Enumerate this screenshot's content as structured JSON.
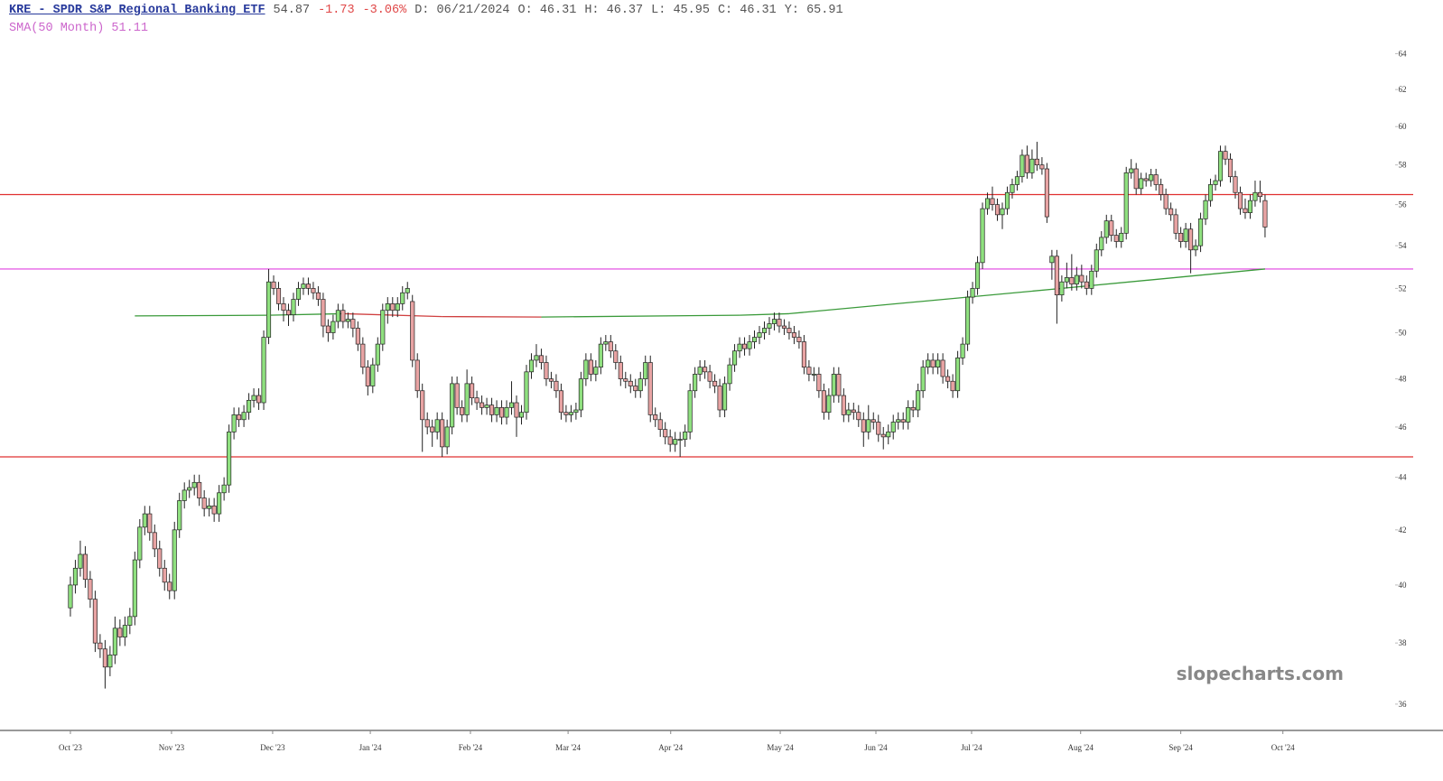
{
  "chart_data": {
    "type": "candlestick",
    "title": "KRE - SPDR S&P Regional Banking ETF",
    "quote": [
      "54.87",
      "-1.73",
      "-3.06%",
      "D: 06/21/2024",
      "O: 46.31",
      "H: 46.37",
      "L: 45.95",
      "C: 46.31",
      "Y: 65.91"
    ],
    "quote_colors": [
      "#555555",
      "#e04848",
      "#e04848",
      "#555555",
      "#555555",
      "#555555",
      "#555555",
      "#555555",
      "#555555"
    ],
    "sma_label": "SMA(50 Month) 51.11",
    "watermark": "slopecharts.com",
    "log_scale": true,
    "up_color": "#8fe07f",
    "down_color": "#e8a3a3",
    "ylim": [
      35.2,
      65
    ],
    "yticks": [
      36,
      38,
      40,
      42,
      44,
      46,
      48,
      50,
      52,
      54,
      56,
      58,
      60,
      62,
      64
    ],
    "xlim": [
      -14.2,
      263.6
    ],
    "xticks": [
      {
        "value": 0,
        "label": "Oct '23"
      },
      {
        "value": 20.4,
        "label": "Nov '23"
      },
      {
        "value": 40.8,
        "label": "Dec '23"
      },
      {
        "value": 60.5,
        "label": "Jan '24"
      },
      {
        "value": 80.7,
        "label": "Feb '24"
      },
      {
        "value": 100.4,
        "label": "Mar '24"
      },
      {
        "value": 121.1,
        "label": "Apr '24"
      },
      {
        "value": 143.2,
        "label": "May '24"
      },
      {
        "value": 162.5,
        "label": "Jun '24"
      },
      {
        "value": 181.8,
        "label": "Jul '24"
      },
      {
        "value": 203.8,
        "label": "Aug '24"
      },
      {
        "value": 224,
        "label": "Sep '24"
      },
      {
        "value": 244.6,
        "label": "Oct '24"
      }
    ],
    "hlines": [
      {
        "value": 56.5,
        "color": "#e03030"
      },
      {
        "value": 52.9,
        "color": "#e040e0"
      },
      {
        "value": 44.8,
        "color": "#e03030"
      }
    ],
    "sma": {
      "x": [
        13,
        40,
        55,
        75,
        95,
        135,
        145,
        200,
        241
      ],
      "values": [
        50.75,
        50.78,
        50.85,
        50.72,
        50.7,
        50.78,
        50.85,
        52.0,
        52.9
      ],
      "up_color": "#3a9a3a",
      "down_color": "#d04040"
    },
    "candles": [
      [
        39.2,
        40.3,
        38.9,
        40
      ],
      [
        40,
        40.9,
        39.7,
        40.6
      ],
      [
        40.6,
        41.6,
        40.3,
        41.1
      ],
      [
        41.1,
        41.4,
        39.9,
        40.2
      ],
      [
        40.2,
        40.5,
        39.2,
        39.5
      ],
      [
        39.5,
        39.8,
        37.7,
        38
      ],
      [
        38,
        38.3,
        37.5,
        37.8
      ],
      [
        37.8,
        38.1,
        36.5,
        37.2
      ],
      [
        37.2,
        37.9,
        36.9,
        37.6
      ],
      [
        37.6,
        38.9,
        37.3,
        38.5
      ],
      [
        38.5,
        38.8,
        37.9,
        38.2
      ],
      [
        38.2,
        38.9,
        37.9,
        38.6
      ],
      [
        38.6,
        39.2,
        38.3,
        38.9
      ],
      [
        38.9,
        41.2,
        38.6,
        40.9
      ],
      [
        40.9,
        42.4,
        40.6,
        42.1
      ],
      [
        42.1,
        42.9,
        41.8,
        42.6
      ],
      [
        42.6,
        42.9,
        41.6,
        41.9
      ],
      [
        41.9,
        42.2,
        41,
        41.3
      ],
      [
        41.3,
        41.6,
        40.3,
        40.6
      ],
      [
        40.6,
        40.9,
        39.8,
        40.1
      ],
      [
        40.1,
        40.4,
        39.5,
        39.8
      ],
      [
        39.8,
        42.3,
        39.5,
        42
      ],
      [
        42,
        43.4,
        41.7,
        43.1
      ],
      [
        43.1,
        43.8,
        42.8,
        43.5
      ],
      [
        43.5,
        43.9,
        43.2,
        43.6
      ],
      [
        43.6,
        44.1,
        43.3,
        43.8
      ],
      [
        43.8,
        44.1,
        42.9,
        43.2
      ],
      [
        43.2,
        43.5,
        42.5,
        42.8
      ],
      [
        42.8,
        43.2,
        42.5,
        42.9
      ],
      [
        42.9,
        43.2,
        42.3,
        42.6
      ],
      [
        42.6,
        43.7,
        42.3,
        43.4
      ],
      [
        43.4,
        44,
        43.1,
        43.7
      ],
      [
        43.7,
        46.1,
        43.4,
        45.8
      ],
      [
        45.8,
        46.8,
        45.5,
        46.5
      ],
      [
        46.5,
        46.8,
        46,
        46.3
      ],
      [
        46.3,
        46.9,
        46,
        46.6
      ],
      [
        46.6,
        47.4,
        46.3,
        47.1
      ],
      [
        47.1,
        47.6,
        46.8,
        47.3
      ],
      [
        47.3,
        47.6,
        46.7,
        47
      ],
      [
        47,
        50.1,
        46.7,
        49.8
      ],
      [
        49.8,
        52.9,
        49.5,
        52.3
      ],
      [
        52.3,
        52.6,
        51.7,
        52
      ],
      [
        52,
        52.3,
        51,
        51.3
      ],
      [
        51.3,
        51.6,
        50.5,
        51
      ],
      [
        51,
        51.3,
        50.3,
        50.8
      ],
      [
        50.8,
        51.8,
        50.5,
        51.5
      ],
      [
        51.5,
        52.3,
        51.2,
        52
      ],
      [
        52,
        52.5,
        51.7,
        52.2
      ],
      [
        52.2,
        52.5,
        51.7,
        52
      ],
      [
        52,
        52.3,
        51.5,
        51.8
      ],
      [
        51.8,
        52.1,
        51.2,
        51.5
      ],
      [
        51.5,
        51.8,
        49.8,
        50.3
      ],
      [
        50.3,
        50.6,
        49.6,
        50
      ],
      [
        50,
        50.8,
        49.7,
        50.5
      ],
      [
        50.5,
        51.3,
        50.2,
        51
      ],
      [
        51,
        51.3,
        50.2,
        50.5
      ],
      [
        50.5,
        50.9,
        50.2,
        50.6
      ],
      [
        50.6,
        50.9,
        49.8,
        50.2
      ],
      [
        50.2,
        50.5,
        49.2,
        49.5
      ],
      [
        49.5,
        49.8,
        48.2,
        48.5
      ],
      [
        48.5,
        48.8,
        47.3,
        47.7
      ],
      [
        47.7,
        48.9,
        47.4,
        48.6
      ],
      [
        48.6,
        49.8,
        48.3,
        49.5
      ],
      [
        49.5,
        51.3,
        49.2,
        51
      ],
      [
        51,
        51.6,
        50.4,
        51.3
      ],
      [
        51.3,
        51.6,
        50.7,
        51
      ],
      [
        51,
        51.6,
        50.7,
        51.3
      ],
      [
        51.3,
        52.1,
        51,
        51.8
      ],
      [
        51.8,
        52.3,
        51.5,
        52
      ],
      [
        51.4,
        51.7,
        48.5,
        48.8
      ],
      [
        48.8,
        49.1,
        47.2,
        47.5
      ],
      [
        47.5,
        47.8,
        45,
        46.3
      ],
      [
        46.3,
        46.6,
        45.7,
        46
      ],
      [
        46,
        46.3,
        45.2,
        45.8
      ],
      [
        45.8,
        46.6,
        45.5,
        46.3
      ],
      [
        46.3,
        46.6,
        44.8,
        45.2
      ],
      [
        45.2,
        46.3,
        44.9,
        46
      ],
      [
        46,
        48.1,
        45.7,
        47.8
      ],
      [
        47.8,
        48.1,
        46.5,
        46.8
      ],
      [
        46.8,
        47.1,
        46.2,
        46.5
      ],
      [
        46.5,
        48.4,
        46.2,
        47.8
      ],
      [
        47.8,
        48.1,
        46.9,
        47.2
      ],
      [
        47.2,
        47.5,
        46.7,
        47
      ],
      [
        47,
        47.3,
        46.5,
        46.8
      ],
      [
        46.8,
        47.2,
        46.5,
        46.9
      ],
      [
        46.9,
        47.2,
        46.2,
        46.5
      ],
      [
        46.5,
        47.1,
        46.2,
        46.8
      ],
      [
        46.8,
        47.1,
        46.1,
        46.4
      ],
      [
        46.4,
        47.1,
        46.1,
        46.8
      ],
      [
        46.8,
        47.9,
        46.5,
        47
      ],
      [
        47,
        47.3,
        45.6,
        46.4
      ],
      [
        46.4,
        46.9,
        46.1,
        46.6
      ],
      [
        46.6,
        48.6,
        46.3,
        48.3
      ],
      [
        48.3,
        49.1,
        48,
        48.8
      ],
      [
        48.8,
        49.5,
        48.5,
        49
      ],
      [
        49,
        49.3,
        48.4,
        48.7
      ],
      [
        48.7,
        49,
        47.7,
        48
      ],
      [
        48,
        48.3,
        47.6,
        47.9
      ],
      [
        47.9,
        48.2,
        47.2,
        47.5
      ],
      [
        47.5,
        47.8,
        46.3,
        46.6
      ],
      [
        46.6,
        46.9,
        46.2,
        46.5
      ],
      [
        46.5,
        46.9,
        46.2,
        46.6
      ],
      [
        46.6,
        47,
        46.3,
        46.7
      ],
      [
        46.7,
        48.3,
        46.4,
        48
      ],
      [
        48,
        49.1,
        47.7,
        48.8
      ],
      [
        48.8,
        49.1,
        47.9,
        48.2
      ],
      [
        48.2,
        48.8,
        47.9,
        48.5
      ],
      [
        48.5,
        49.8,
        48.2,
        49.5
      ],
      [
        49.5,
        49.9,
        49.2,
        49.6
      ],
      [
        49.6,
        49.9,
        48.9,
        49.2
      ],
      [
        49.2,
        49.5,
        48.4,
        48.7
      ],
      [
        48.7,
        49,
        47.7,
        48
      ],
      [
        48,
        48.3,
        47.6,
        47.9
      ],
      [
        47.9,
        48.2,
        47.4,
        47.7
      ],
      [
        47.7,
        48,
        47.2,
        47.5
      ],
      [
        47.5,
        48.3,
        47.2,
        48
      ],
      [
        48,
        49,
        47.7,
        48.7
      ],
      [
        48.7,
        49,
        46.2,
        46.5
      ],
      [
        46.5,
        46.8,
        46,
        46.3
      ],
      [
        46.3,
        46.6,
        45.6,
        45.9
      ],
      [
        45.9,
        46.2,
        45.3,
        45.6
      ],
      [
        45.6,
        45.9,
        45,
        45.3
      ],
      [
        45.3,
        45.8,
        45,
        45.5
      ],
      [
        45.5,
        45.8,
        44.8,
        45.5
      ],
      [
        45.5,
        46.1,
        45.2,
        45.8
      ],
      [
        45.8,
        47.8,
        45.5,
        47.5
      ],
      [
        47.5,
        48.5,
        47.2,
        48.2
      ],
      [
        48.2,
        48.8,
        47.9,
        48.5
      ],
      [
        48.5,
        48.8,
        48,
        48.3
      ],
      [
        48.3,
        48.6,
        47.6,
        47.9
      ],
      [
        47.9,
        48.2,
        47.4,
        47.7
      ],
      [
        47.7,
        48,
        46.4,
        46.7
      ],
      [
        46.7,
        48.1,
        46.4,
        47.8
      ],
      [
        47.8,
        48.9,
        47.5,
        48.6
      ],
      [
        48.6,
        49.5,
        48.3,
        49.2
      ],
      [
        49.2,
        49.8,
        48.9,
        49.5
      ],
      [
        49.5,
        49.8,
        49,
        49.3
      ],
      [
        49.3,
        49.9,
        49,
        49.6
      ],
      [
        49.6,
        50.1,
        49.3,
        49.8
      ],
      [
        49.8,
        50.3,
        49.5,
        50
      ],
      [
        50,
        50.5,
        49.7,
        50.2
      ],
      [
        50.2,
        50.7,
        49.9,
        50.4
      ],
      [
        50.4,
        50.9,
        50.1,
        50.6
      ],
      [
        50.6,
        50.9,
        50,
        50.3
      ],
      [
        50.3,
        50.6,
        49.9,
        50.2
      ],
      [
        50.2,
        50.5,
        49.7,
        50
      ],
      [
        50,
        50.3,
        49.5,
        49.8
      ],
      [
        49.8,
        50.1,
        49.3,
        49.6
      ],
      [
        49.6,
        49.9,
        48.2,
        48.5
      ],
      [
        48.5,
        48.8,
        47.9,
        48.2
      ],
      [
        48.2,
        48.5,
        47.9,
        48.2
      ],
      [
        48.2,
        48.5,
        47.2,
        47.5
      ],
      [
        47.5,
        47.8,
        46.3,
        46.6
      ],
      [
        46.6,
        47.6,
        46.3,
        47.3
      ],
      [
        47.3,
        48.5,
        47,
        48.2
      ],
      [
        48.2,
        48.5,
        47,
        47.3
      ],
      [
        47.3,
        47.6,
        46.2,
        46.5
      ],
      [
        46.5,
        47,
        46.2,
        46.7
      ],
      [
        46.7,
        47,
        46.3,
        46.6
      ],
      [
        46.6,
        46.9,
        46,
        46.3
      ],
      [
        46.3,
        46.6,
        45.2,
        45.8
      ],
      [
        45.8,
        46.9,
        45.5,
        46.3
      ],
      [
        46.3,
        46.6,
        45.9,
        46.2
      ],
      [
        46.2,
        46.5,
        45.4,
        45.7
      ],
      [
        45.7,
        46,
        45.1,
        45.6
      ],
      [
        45.6,
        46.1,
        45.3,
        45.8
      ],
      [
        45.8,
        46.5,
        45.5,
        46.2
      ],
      [
        46.2,
        46.6,
        45.9,
        46.3
      ],
      [
        46.3,
        46.6,
        45.9,
        46.2
      ],
      [
        46.2,
        47.1,
        45.9,
        46.8
      ],
      [
        46.8,
        47.1,
        46.4,
        46.7
      ],
      [
        46.7,
        47.8,
        46.4,
        47.5
      ],
      [
        47.5,
        48.8,
        47.2,
        48.5
      ],
      [
        48.5,
        49.1,
        48.2,
        48.8
      ],
      [
        48.8,
        49.1,
        48.2,
        48.5
      ],
      [
        48.5,
        49.1,
        48.2,
        48.8
      ],
      [
        48.8,
        49.1,
        47.8,
        48.1
      ],
      [
        48.1,
        48.4,
        47.6,
        47.9
      ],
      [
        47.9,
        48.2,
        47.2,
        47.5
      ],
      [
        47.5,
        49.2,
        47.2,
        48.9
      ],
      [
        48.9,
        49.8,
        48.6,
        49.5
      ],
      [
        49.5,
        51.9,
        49.2,
        51.6
      ],
      [
        51.6,
        52.3,
        51.3,
        52
      ],
      [
        52,
        53.5,
        51.7,
        53.2
      ],
      [
        53.2,
        56.1,
        52.9,
        55.8
      ],
      [
        55.8,
        56.6,
        55.5,
        56.3
      ],
      [
        56.3,
        56.9,
        55.7,
        56
      ],
      [
        56,
        56.3,
        55.2,
        55.5
      ],
      [
        55.5,
        56.1,
        54.8,
        55.8
      ],
      [
        55.8,
        56.9,
        55.5,
        56.6
      ],
      [
        56.6,
        57.3,
        56.3,
        57
      ],
      [
        57,
        57.7,
        56.7,
        57.4
      ],
      [
        57.4,
        58.8,
        57.1,
        58.5
      ],
      [
        58.5,
        59,
        57.3,
        57.6
      ],
      [
        57.6,
        58.8,
        57.3,
        58.3
      ],
      [
        58.3,
        59.2,
        57.7,
        58
      ],
      [
        58,
        58.4,
        57.5,
        57.8
      ],
      [
        57.8,
        58.1,
        55.1,
        55.4
      ],
      [
        53.2,
        53.8,
        52.4,
        53.5
      ],
      [
        53.5,
        53.8,
        50.4,
        51.7
      ],
      [
        51.7,
        52.6,
        51.4,
        52.3
      ],
      [
        52.3,
        53.2,
        52,
        52.5
      ],
      [
        52.5,
        53.6,
        51.9,
        52.2
      ],
      [
        52.2,
        53,
        51.9,
        52.6
      ],
      [
        52.6,
        53.1,
        52,
        52.3
      ],
      [
        52.3,
        52.6,
        51.7,
        52
      ],
      [
        52,
        53.1,
        51.7,
        52.8
      ],
      [
        52.8,
        54.1,
        52.5,
        53.8
      ],
      [
        53.8,
        54.7,
        53.5,
        54.4
      ],
      [
        54.4,
        55.5,
        54.1,
        55.2
      ],
      [
        55.2,
        55.5,
        54.2,
        54.5
      ],
      [
        54.5,
        54.8,
        53.9,
        54.2
      ],
      [
        54.2,
        54.9,
        53.9,
        54.6
      ],
      [
        54.6,
        57.9,
        54.3,
        57.6
      ],
      [
        57.6,
        58.3,
        57.3,
        57.8
      ],
      [
        57.8,
        58.1,
        56.5,
        56.8
      ],
      [
        56.8,
        57.6,
        56.5,
        57.3
      ],
      [
        57.3,
        57.6,
        56.9,
        57.2
      ],
      [
        57.2,
        57.8,
        56.9,
        57.5
      ],
      [
        57.5,
        57.8,
        56.7,
        57
      ],
      [
        57,
        57.3,
        56.2,
        56.5
      ],
      [
        56.5,
        56.8,
        55.5,
        55.8
      ],
      [
        55.8,
        56.1,
        55.2,
        55.5
      ],
      [
        55.5,
        55.8,
        54.3,
        54.6
      ],
      [
        54.6,
        54.9,
        53.9,
        54.2
      ],
      [
        54.2,
        55.1,
        53.9,
        54.8
      ],
      [
        54.8,
        55.1,
        52.7,
        53.8
      ],
      [
        53.8,
        54.3,
        53.5,
        54
      ],
      [
        54,
        55.6,
        53.7,
        55.3
      ],
      [
        55.3,
        56.5,
        55,
        56.2
      ],
      [
        56.2,
        57.3,
        55.9,
        57
      ],
      [
        57,
        57.5,
        56.7,
        57.2
      ],
      [
        57.2,
        59,
        56.9,
        58.7
      ],
      [
        58.7,
        59,
        58,
        58.3
      ],
      [
        58.3,
        58.6,
        57.1,
        57.4
      ],
      [
        57.4,
        57.7,
        56.3,
        56.6
      ],
      [
        56.6,
        56.9,
        55.5,
        55.8
      ],
      [
        55.8,
        56.3,
        55.3,
        55.6
      ],
      [
        55.6,
        56.5,
        55.3,
        56.2
      ],
      [
        56.2,
        57.2,
        55.9,
        56.6
      ],
      [
        56.6,
        57.2,
        56.1,
        56.4
      ],
      [
        56.2,
        56.5,
        54.4,
        54.9
      ]
    ]
  }
}
